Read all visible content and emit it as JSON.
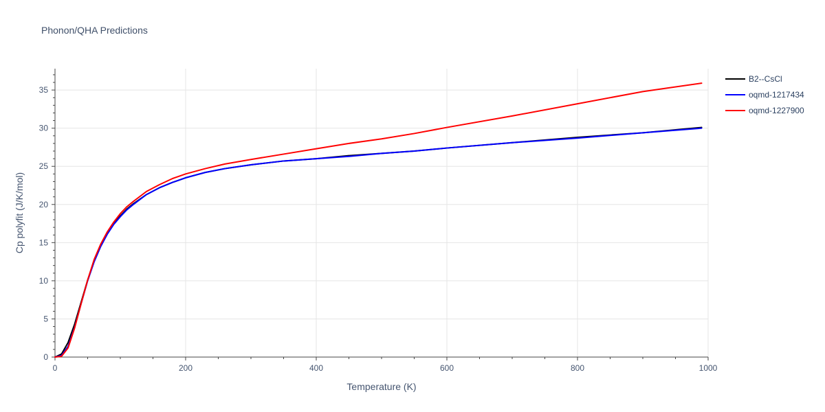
{
  "chart_data": {
    "type": "line",
    "title": "Phonon/QHA Predictions",
    "xlabel": "Temperature (K)",
    "ylabel": "Cp polyfit (J/K/mol)",
    "xlim": [
      0,
      1000
    ],
    "ylim": [
      0,
      37.8
    ],
    "x_ticks": [
      0,
      200,
      400,
      600,
      800,
      1000
    ],
    "y_ticks": [
      0,
      5,
      10,
      15,
      20,
      25,
      30,
      35
    ],
    "grid": true,
    "legend_position": "top-right",
    "series": [
      {
        "name": "B2--CsCl",
        "color": "#000000",
        "x": [
          0,
          10,
          20,
          30,
          40,
          50,
          60,
          70,
          80,
          90,
          100,
          110,
          120,
          140,
          160,
          180,
          200,
          230,
          260,
          300,
          350,
          400,
          450,
          500,
          550,
          600,
          700,
          800,
          900,
          990
        ],
        "y": [
          0,
          0.4,
          1.9,
          4.3,
          7.2,
          10.1,
          12.6,
          14.6,
          16.2,
          17.5,
          18.5,
          19.4,
          20.1,
          21.3,
          22.2,
          22.9,
          23.5,
          24.2,
          24.7,
          25.2,
          25.7,
          26.0,
          26.4,
          26.7,
          27.0,
          27.4,
          28.1,
          28.8,
          29.4,
          30.1
        ]
      },
      {
        "name": "oqmd-1217434",
        "color": "#0000ff",
        "x": [
          0,
          10,
          20,
          30,
          40,
          50,
          60,
          70,
          80,
          90,
          100,
          110,
          120,
          140,
          160,
          180,
          200,
          230,
          260,
          300,
          350,
          400,
          450,
          500,
          550,
          600,
          700,
          800,
          900,
          990
        ],
        "y": [
          0,
          0.2,
          1.4,
          3.9,
          7.0,
          10.0,
          12.5,
          14.5,
          16.1,
          17.4,
          18.4,
          19.3,
          20.0,
          21.3,
          22.2,
          22.9,
          23.5,
          24.2,
          24.7,
          25.2,
          25.7,
          26.0,
          26.3,
          26.7,
          27.0,
          27.4,
          28.1,
          28.7,
          29.4,
          30.0
        ]
      },
      {
        "name": "oqmd-1227900",
        "color": "#ff0000",
        "x": [
          0,
          10,
          20,
          30,
          40,
          50,
          60,
          70,
          80,
          90,
          100,
          110,
          120,
          140,
          160,
          180,
          200,
          230,
          260,
          300,
          350,
          400,
          450,
          500,
          550,
          600,
          700,
          800,
          900,
          990
        ],
        "y": [
          0,
          0.1,
          1.2,
          3.8,
          7.0,
          10.1,
          12.8,
          14.8,
          16.4,
          17.7,
          18.8,
          19.7,
          20.4,
          21.7,
          22.6,
          23.4,
          24.0,
          24.7,
          25.3,
          25.9,
          26.6,
          27.3,
          28.0,
          28.6,
          29.3,
          30.1,
          31.6,
          33.2,
          34.8,
          35.9
        ]
      }
    ]
  }
}
